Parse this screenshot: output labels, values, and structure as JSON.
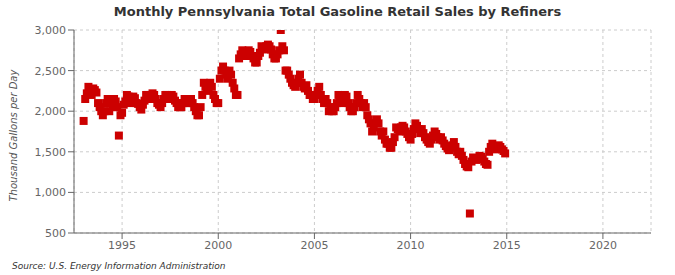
{
  "chart_data": {
    "type": "scatter",
    "title": "Monthly Pennsylvania Total Gasoline Retail Sales by Refiners",
    "ylabel": "Thousand Gallons per Day",
    "annotations": [
      "Source: U.S. Energy Information Administration"
    ],
    "color": "#CC0000",
    "marker": "square",
    "grid": true,
    "xlim": [
      1992.5,
      2022.5
    ],
    "xticks": [
      1995,
      2000,
      2005,
      2010,
      2015,
      2020
    ],
    "ylim": [
      500,
      3000
    ],
    "yticks": [
      500,
      {
        "value": 1000,
        "label": "1,000"
      },
      {
        "value": 1500,
        "label": "1,500"
      },
      {
        "value": 2000,
        "label": "2,000"
      },
      {
        "value": 2500,
        "label": "2,500"
      },
      {
        "value": 3000,
        "label": "3,000"
      }
    ],
    "x": [
      1993,
      1993.083,
      1993.167,
      1993.25,
      1993.333,
      1993.417,
      1993.5,
      1993.583,
      1993.667,
      1993.75,
      1993.833,
      1993.917,
      1994,
      1994.083,
      1994.167,
      1994.25,
      1994.333,
      1994.417,
      1994.5,
      1994.583,
      1994.667,
      1994.75,
      1994.833,
      1994.917,
      1995,
      1995.083,
      1995.167,
      1995.25,
      1995.333,
      1995.417,
      1995.5,
      1995.583,
      1995.667,
      1995.75,
      1995.833,
      1995.917,
      1996,
      1996.083,
      1996.167,
      1996.25,
      1996.333,
      1996.417,
      1996.5,
      1996.583,
      1996.667,
      1996.75,
      1996.833,
      1996.917,
      1997,
      1997.083,
      1997.167,
      1997.25,
      1997.333,
      1997.417,
      1997.5,
      1997.583,
      1997.667,
      1997.75,
      1997.833,
      1997.917,
      1998,
      1998.083,
      1998.167,
      1998.25,
      1998.333,
      1998.417,
      1998.5,
      1998.583,
      1998.667,
      1998.75,
      1998.833,
      1998.917,
      1999,
      1999.083,
      1999.167,
      1999.25,
      1999.333,
      1999.417,
      1999.5,
      1999.583,
      1999.667,
      1999.75,
      1999.833,
      1999.917,
      2000,
      2000.083,
      2000.167,
      2000.25,
      2000.333,
      2000.417,
      2000.5,
      2000.583,
      2000.667,
      2000.75,
      2000.833,
      2000.917,
      2001,
      2001.083,
      2001.167,
      2001.25,
      2001.333,
      2001.417,
      2001.5,
      2001.583,
      2001.667,
      2001.75,
      2001.833,
      2001.917,
      2002,
      2002.083,
      2002.167,
      2002.25,
      2002.333,
      2002.417,
      2002.5,
      2002.583,
      2002.667,
      2002.75,
      2002.833,
      2002.917,
      2003,
      2003.083,
      2003.167,
      2003.25,
      2003.333,
      2003.417,
      2003.5,
      2003.583,
      2003.667,
      2003.75,
      2003.833,
      2003.917,
      2004,
      2004.083,
      2004.167,
      2004.25,
      2004.333,
      2004.417,
      2004.5,
      2004.583,
      2004.667,
      2004.75,
      2004.833,
      2004.917,
      2005,
      2005.083,
      2005.167,
      2005.25,
      2005.333,
      2005.417,
      2005.5,
      2005.583,
      2005.667,
      2005.75,
      2005.833,
      2005.917,
      2006,
      2006.083,
      2006.167,
      2006.25,
      2006.333,
      2006.417,
      2006.5,
      2006.583,
      2006.667,
      2006.75,
      2006.833,
      2006.917,
      2007,
      2007.083,
      2007.167,
      2007.25,
      2007.333,
      2007.417,
      2007.5,
      2007.583,
      2007.667,
      2007.75,
      2007.833,
      2007.917,
      2008,
      2008.083,
      2008.167,
      2008.25,
      2008.333,
      2008.417,
      2008.5,
      2008.583,
      2008.667,
      2008.75,
      2008.833,
      2008.917,
      2009,
      2009.083,
      2009.167,
      2009.25,
      2009.333,
      2009.417,
      2009.5,
      2009.583,
      2009.667,
      2009.75,
      2009.833,
      2009.917,
      2010,
      2010.083,
      2010.167,
      2010.25,
      2010.333,
      2010.417,
      2010.5,
      2010.583,
      2010.667,
      2010.75,
      2010.833,
      2010.917,
      2011,
      2011.083,
      2011.167,
      2011.25,
      2011.333,
      2011.417,
      2011.5,
      2011.583,
      2011.667,
      2011.75,
      2011.833,
      2011.917,
      2012,
      2012.083,
      2012.167,
      2012.25,
      2012.333,
      2012.417,
      2012.5,
      2012.583,
      2012.667,
      2012.75,
      2012.833,
      2012.917,
      2013,
      2013.083,
      2013.167,
      2013.25,
      2013.333,
      2013.417,
      2013.5,
      2013.583,
      2013.667,
      2013.75,
      2013.833,
      2013.917,
      2014,
      2014.083,
      2014.167,
      2014.25,
      2014.333,
      2014.417,
      2014.5,
      2014.583,
      2014.667,
      2014.75,
      2014.833,
      2014.917
    ],
    "values": [
      1880,
      2150,
      2220,
      2300,
      2240,
      2200,
      2280,
      2260,
      2230,
      2100,
      2050,
      2000,
      1950,
      2000,
      2100,
      2150,
      2000,
      2100,
      2050,
      2150,
      2120,
      2050,
      1700,
      1950,
      1980,
      2080,
      2120,
      2200,
      2180,
      2100,
      2150,
      2180,
      2160,
      2100,
      2090,
      2050,
      2020,
      2080,
      2130,
      2200,
      2200,
      2150,
      2200,
      2220,
      2200,
      2150,
      2100,
      2080,
      2050,
      2100,
      2150,
      2200,
      2200,
      2150,
      2150,
      2200,
      2180,
      2130,
      2100,
      2050,
      2050,
      2050,
      2100,
      2150,
      2130,
      2100,
      2100,
      2150,
      2100,
      2050,
      2000,
      1950,
      1950,
      2050,
      2200,
      2350,
      2300,
      2250,
      2280,
      2350,
      2300,
      2200,
      2150,
      2100,
      2100,
      2400,
      2500,
      2550,
      2500,
      2450,
      2400,
      2500,
      2450,
      2350,
      2280,
      2200,
      2200,
      2650,
      2700,
      2750,
      2700,
      2680,
      2700,
      2750,
      2730,
      2680,
      2650,
      2600,
      2600,
      2680,
      2720,
      2800,
      2780,
      2760,
      2800,
      2820,
      2800,
      2760,
      2700,
      2650,
      2650,
      2700,
      2750,
      3000,
      2800,
      2750,
      2500,
      2500,
      2450,
      2400,
      2350,
      2320,
      2300,
      2350,
      2400,
      2450,
      2350,
      2300,
      2280,
      2320,
      2250,
      2200,
      2200,
      2150,
      2150,
      2200,
      2250,
      2300,
      2200,
      2150,
      2100,
      2150,
      2100,
      2000,
      2050,
      2000,
      2000,
      2050,
      2100,
      2200,
      2150,
      2100,
      2150,
      2200,
      2180,
      2100,
      2050,
      2000,
      2000,
      2050,
      2100,
      2200,
      2150,
      2100,
      2050,
      2100,
      2050,
      1950,
      1900,
      1850,
      1750,
      1800,
      1850,
      1900,
      1850,
      1750,
      1700,
      1750,
      1650,
      1600,
      1600,
      1550,
      1550,
      1620,
      1680,
      1800,
      1780,
      1750,
      1800,
      1820,
      1800,
      1750,
      1720,
      1680,
      1650,
      1720,
      1780,
      1850,
      1820,
      1780,
      1730,
      1780,
      1730,
      1680,
      1650,
      1620,
      1600,
      1650,
      1700,
      1750,
      1720,
      1680,
      1650,
      1680,
      1640,
      1600,
      1570,
      1540,
      1520,
      1550,
      1580,
      1620,
      1560,
      1500,
      1470,
      1500,
      1450,
      1400,
      1350,
      1320,
      1310,
      740,
      1380,
      1430,
      1420,
      1400,
      1420,
      1450,
      1440,
      1410,
      1380,
      1350,
      1340,
      1500,
      1560,
      1600,
      1560,
      1530,
      1560,
      1580,
      1560,
      1530,
      1510,
      1480
    ]
  }
}
